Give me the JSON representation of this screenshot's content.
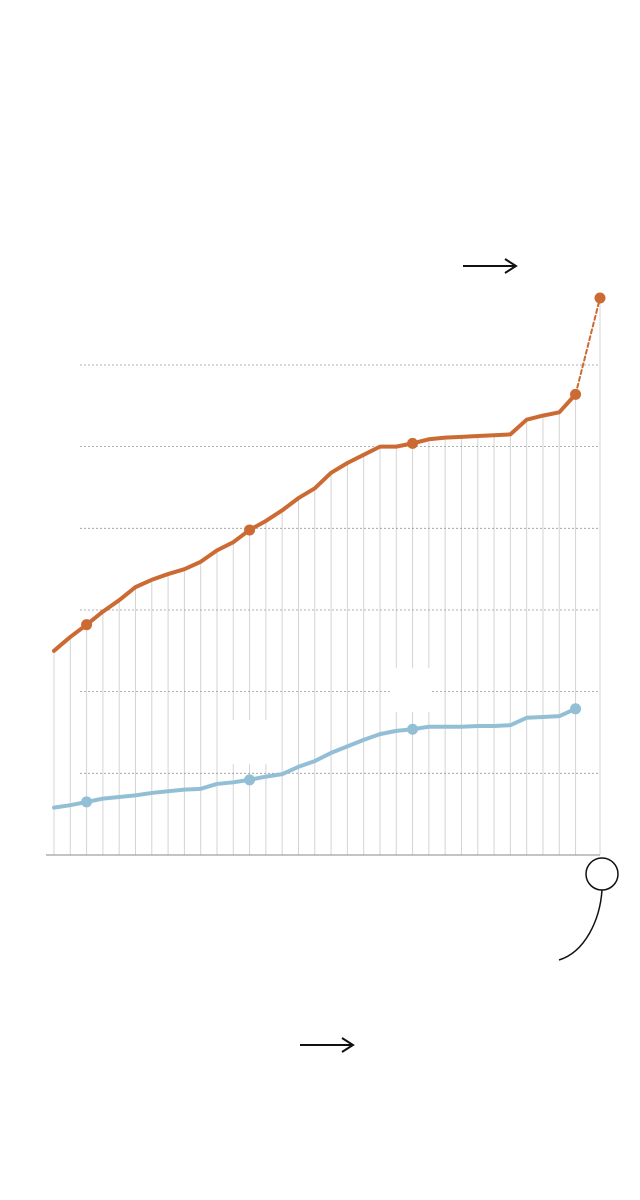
{
  "chart_data": {
    "type": "line",
    "x": [
      0,
      1,
      2,
      3,
      4,
      5,
      6,
      7,
      8,
      9,
      10,
      11,
      12,
      13,
      14,
      15,
      16,
      17,
      18,
      19,
      20,
      21,
      22,
      23,
      24,
      25,
      26,
      27,
      28,
      29,
      30,
      31,
      32,
      33.5
    ],
    "xlim": [
      0,
      33.5
    ],
    "ylim": [
      0,
      7
    ],
    "yticks": [
      1,
      2,
      3,
      4,
      5,
      6
    ],
    "grid": true,
    "series": [
      {
        "color": "#cc6a33",
        "dashed_tail": 1,
        "markers_at": [
          2,
          12,
          22,
          32,
          33
        ],
        "values": [
          2.5,
          2.67,
          2.82,
          2.98,
          3.12,
          3.28,
          3.37,
          3.44,
          3.5,
          3.59,
          3.73,
          3.83,
          3.98,
          4.09,
          4.22,
          4.37,
          4.49,
          4.68,
          4.8,
          4.9,
          5.0,
          5.0,
          5.04,
          5.09,
          5.11,
          5.12,
          5.13,
          5.14,
          5.15,
          5.33,
          5.38,
          5.42,
          5.64,
          6.82
        ]
      },
      {
        "color": "#93bfd6",
        "dashed_tail": 0,
        "markers_at": [
          2,
          12,
          22,
          32
        ],
        "values": [
          0.58,
          0.61,
          0.65,
          0.69,
          0.71,
          0.73,
          0.76,
          0.78,
          0.8,
          0.81,
          0.87,
          0.89,
          0.92,
          0.96,
          0.99,
          1.08,
          1.15,
          1.25,
          1.33,
          1.41,
          1.48,
          1.52,
          1.54,
          1.57,
          1.57,
          1.57,
          1.58,
          1.58,
          1.59,
          1.68,
          1.69,
          1.7,
          1.79,
          null
        ]
      }
    ]
  }
}
